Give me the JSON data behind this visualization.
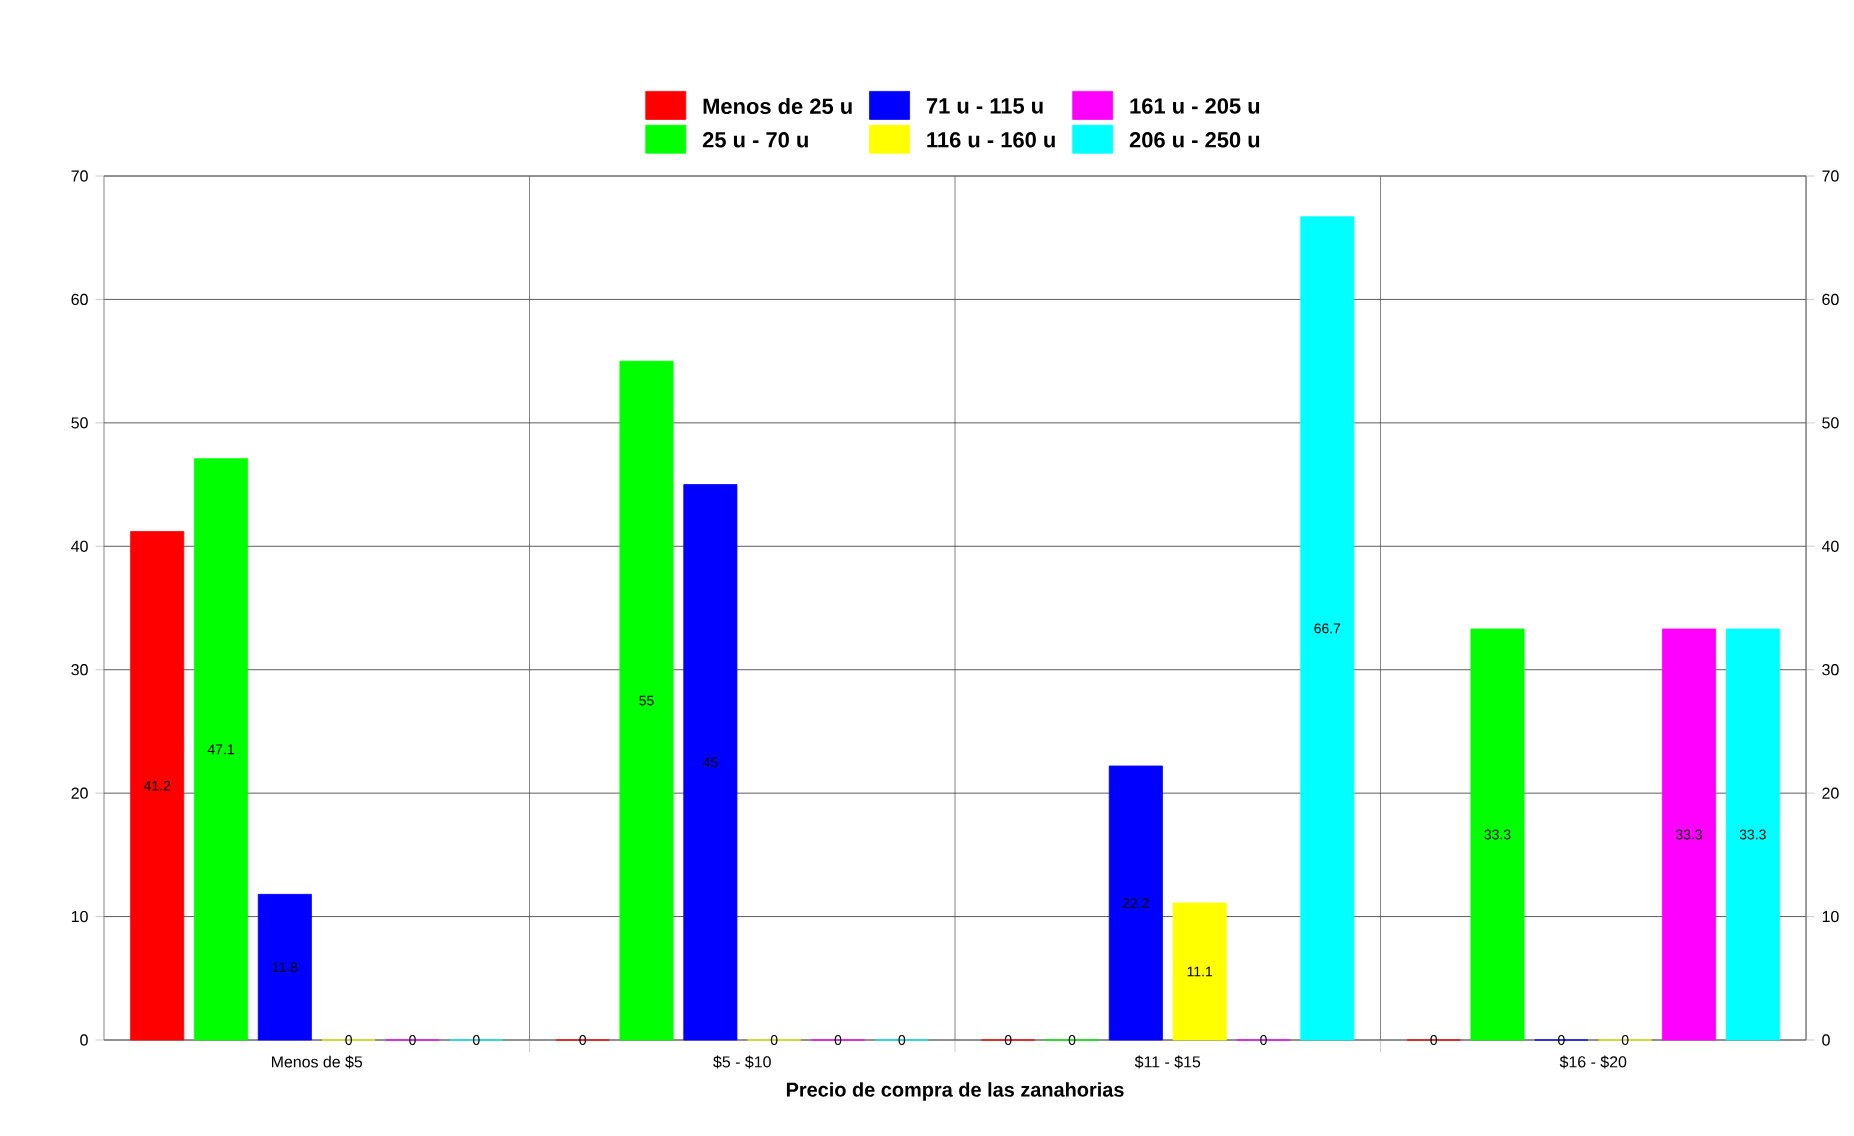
{
  "chart_data": {
    "type": "bar",
    "xlabel": "Precio de compra de las zanahorias",
    "categories": [
      "Menos de $5",
      "$5 - $10",
      "$11 - $15",
      "$16 - $20"
    ],
    "series": [
      {
        "name": "Menos de 25 u",
        "color": "#ff0000",
        "values": [
          41.2,
          0,
          0,
          0
        ],
        "value_labels": [
          "41.2",
          "0",
          "0",
          "0"
        ]
      },
      {
        "name": "25 u - 70 u",
        "color": "#00ff00",
        "values": [
          47.1,
          55,
          0,
          33.3
        ],
        "value_labels": [
          "47.1",
          "55",
          "0",
          "33.3"
        ]
      },
      {
        "name": "71 u - 115 u",
        "color": "#0000ff",
        "values": [
          11.8,
          45,
          22.2,
          0
        ],
        "value_labels": [
          "11.8",
          "45",
          "22.2",
          "0"
        ]
      },
      {
        "name": "116 u - 160 u",
        "color": "#ffff00",
        "values": [
          0,
          0,
          11.1,
          0
        ],
        "value_labels": [
          "0",
          "0",
          "11.1",
          "0"
        ]
      },
      {
        "name": "161 u - 205 u",
        "color": "#ff00ff",
        "values": [
          0,
          0,
          0,
          33.3
        ],
        "value_labels": [
          "0",
          "0",
          "0",
          "33.3"
        ]
      },
      {
        "name": "206 u - 250 u",
        "color": "#00ffff",
        "values": [
          0,
          0,
          66.7,
          33.3
        ],
        "value_labels": [
          "0",
          "0",
          "66.7",
          "33.3"
        ]
      }
    ],
    "ylim": [
      0,
      70
    ],
    "yticks": [
      0,
      10,
      20,
      30,
      40,
      50,
      60,
      70
    ],
    "y2lim": [
      0,
      70
    ],
    "y2ticks": [
      0,
      10,
      20,
      30,
      40,
      50,
      60,
      70
    ],
    "grid": true,
    "legend": "top"
  }
}
